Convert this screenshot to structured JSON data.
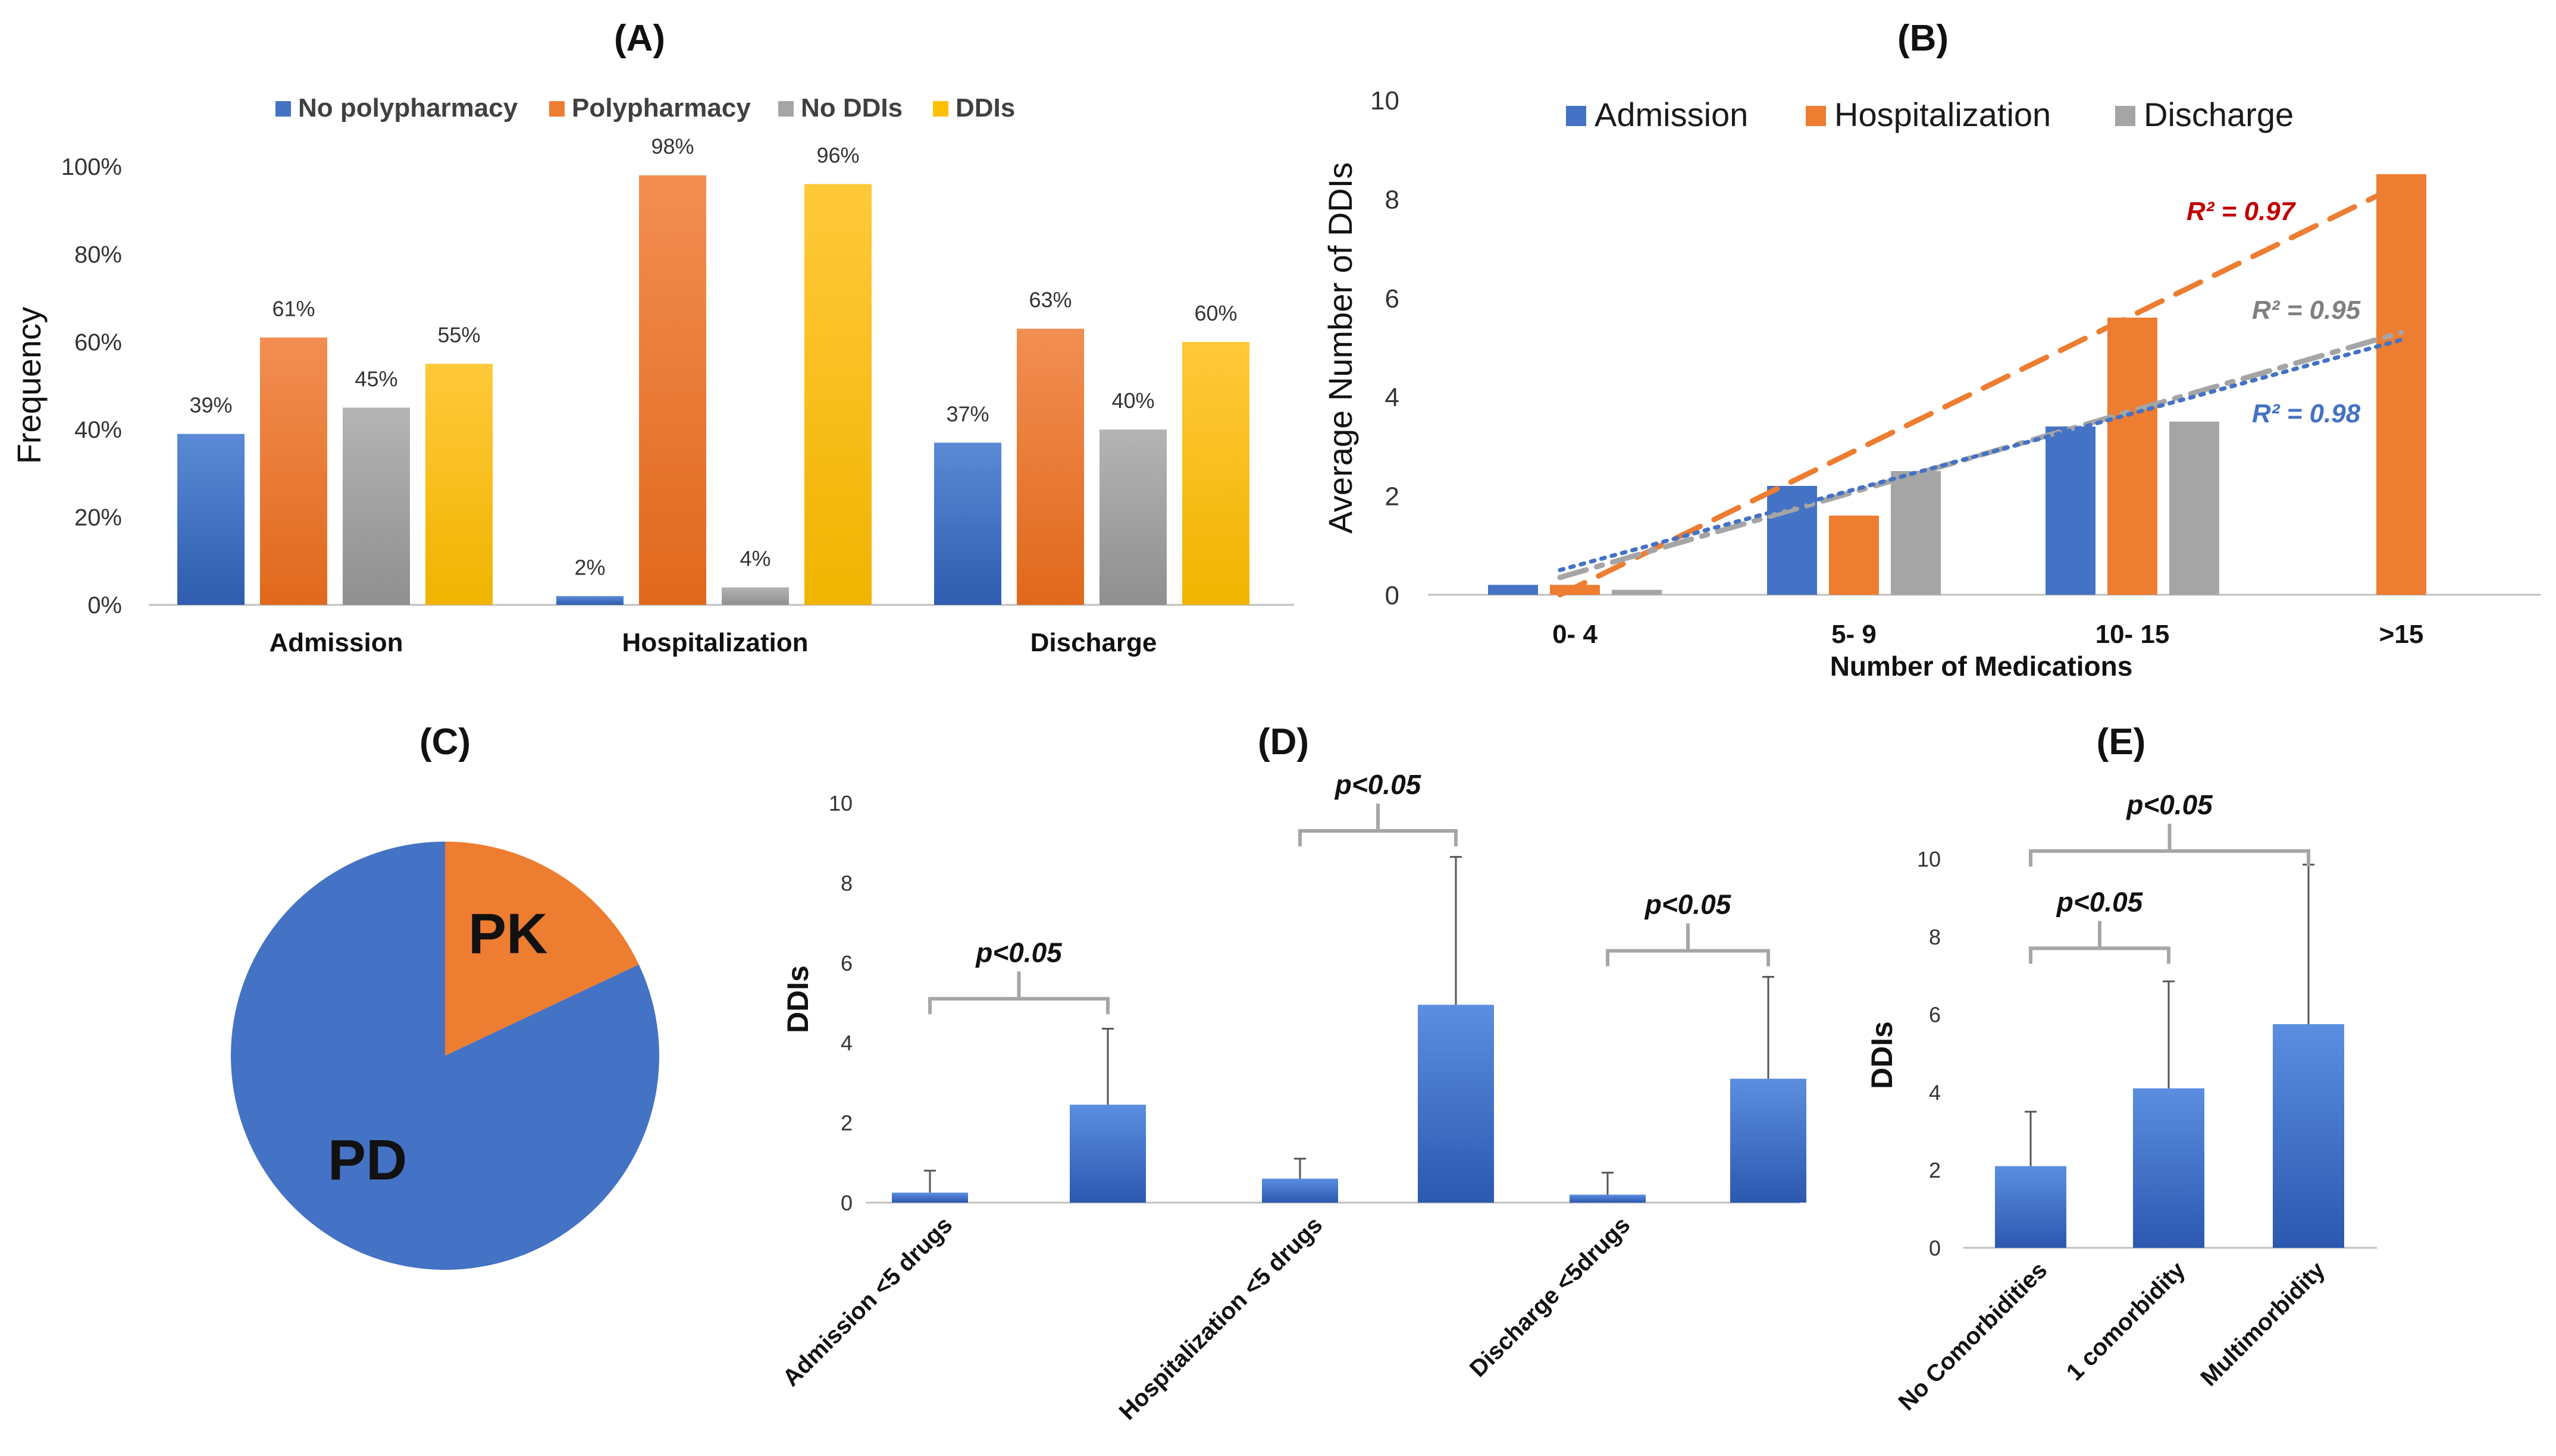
{
  "chart_data": [
    {
      "panel": "(A)",
      "type": "bar",
      "title": "(A)",
      "ylabel": "Frequency",
      "xlabel": "",
      "ylim": [
        0,
        100
      ],
      "yticks": [
        "0%",
        "20%",
        "40%",
        "60%",
        "80%",
        "100%"
      ],
      "categories": [
        "Admission",
        "Hospitalization",
        "Discharge"
      ],
      "series": [
        {
          "name": "No polypharmacy",
          "color": "#4472C4",
          "values": [
            39,
            2,
            37
          ],
          "labels": [
            "39%",
            "2%",
            "37%"
          ]
        },
        {
          "name": "Polypharmacy",
          "color": "#ED7D31",
          "values": [
            61,
            98,
            63
          ],
          "labels": [
            "61%",
            "98%",
            "63%"
          ]
        },
        {
          "name": "No DDIs",
          "color": "#A5A5A5",
          "values": [
            45,
            4,
            40
          ],
          "labels": [
            "45%",
            "4%",
            "40%"
          ]
        },
        {
          "name": "DDIs",
          "color": "#FFC000",
          "values": [
            55,
            96,
            60
          ],
          "labels": [
            "55%",
            "96%",
            "60%"
          ]
        }
      ],
      "legend_position": "top"
    },
    {
      "panel": "(B)",
      "type": "bar",
      "title": "(B)",
      "ylabel": "Average Number of DDIs",
      "xlabel": "Number of Medications",
      "ylim": [
        0,
        10
      ],
      "yticks": [
        "0",
        "2",
        "4",
        "6",
        "8",
        "10"
      ],
      "categories": [
        "0- 4",
        "5- 9",
        "10- 15",
        ">15"
      ],
      "series": [
        {
          "name": "Admission",
          "color": "#4472C4",
          "values": [
            0.2,
            2.2,
            3.4,
            null
          ]
        },
        {
          "name": "Hospitalization",
          "color": "#ED7D31",
          "values": [
            0.2,
            1.6,
            5.6,
            8.5
          ]
        },
        {
          "name": "Discharge",
          "color": "#A5A5A5",
          "values": [
            0.1,
            2.5,
            3.5,
            null
          ]
        }
      ],
      "trendlines": [
        {
          "series": "Hospitalization",
          "style": "dashed",
          "color": "#ED7D31",
          "x": [
            1,
            4
          ],
          "y": [
            -0.5,
            8.3
          ],
          "r2_label": "R² = 0.97",
          "label_color": "#C00000"
        },
        {
          "series": "Discharge",
          "style": "dashdot",
          "color": "#A5A5A5",
          "x": [
            1,
            4
          ],
          "y": [
            0.35,
            5.3
          ],
          "r2_label": "R² = 0.95",
          "label_color": "#808080"
        },
        {
          "series": "Admission",
          "style": "dotted",
          "color": "#4472C4",
          "x": [
            1,
            4
          ],
          "y": [
            0.5,
            5.15
          ],
          "r2_label": "R² = 0.98",
          "label_color": "#4472C4"
        }
      ],
      "legend_position": "top"
    },
    {
      "panel": "(C)",
      "type": "pie",
      "title": "(C)",
      "slices": [
        {
          "label": "PK",
          "value": 18,
          "color": "#ED7D31"
        },
        {
          "label": "PD",
          "value": 82,
          "color": "#4472C4"
        }
      ]
    },
    {
      "panel": "(D)",
      "type": "bar",
      "title": "(D)",
      "ylabel": "DDIs",
      "ylim": [
        0,
        10
      ],
      "yticks": [
        "0",
        "2",
        "4",
        "6",
        "8",
        "10"
      ],
      "categories": [
        "Admission <5 drugs",
        "",
        "Hospitalization <5 drugs",
        "",
        "Discharge <5drugs",
        ""
      ],
      "values": [
        0.25,
        2.45,
        0.6,
        4.95,
        0.2,
        3.1
      ],
      "error_bars": [
        0.8,
        4.35,
        1.1,
        8.65,
        0.75,
        5.65
      ],
      "comparisons": [
        {
          "from": 0,
          "to": 1,
          "label": "p<0.05",
          "level": 5.1
        },
        {
          "from": 2,
          "to": 3,
          "label": "p<0.05",
          "level": 9.3
        },
        {
          "from": 4,
          "to": 5,
          "label": "p<0.05",
          "level": 6.3
        }
      ],
      "color": "#4472C4"
    },
    {
      "panel": "(E)",
      "type": "bar",
      "title": "(E)",
      "ylabel": "DDIs",
      "ylim": [
        0,
        10
      ],
      "yticks": [
        "0",
        "2",
        "4",
        "6",
        "8",
        "10"
      ],
      "categories": [
        "No Comorbidities",
        "1 comorbidity",
        "Multimorbidity"
      ],
      "values": [
        2.1,
        4.1,
        5.75
      ],
      "error_bars": [
        3.5,
        6.85,
        9.85
      ],
      "comparisons": [
        {
          "from": 0,
          "to": 1,
          "label": "p<0.05",
          "level": 7.7
        },
        {
          "from": 0,
          "to": 2,
          "label": "p<0.05",
          "level": 10.2
        }
      ],
      "color": "#4472C4"
    }
  ]
}
